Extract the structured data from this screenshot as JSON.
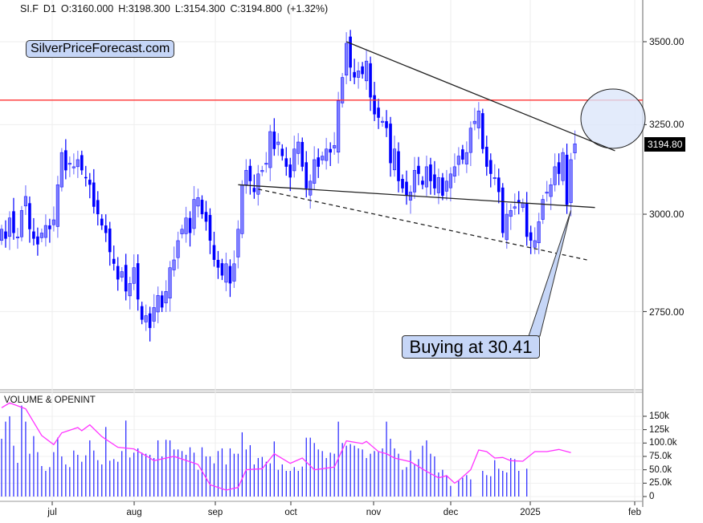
{
  "header": {
    "symbol": "SI.F",
    "timeframe": "D1",
    "open": "O:3160.000",
    "high": "H:3198.300",
    "low": "L:3154.300",
    "close": "C:3194.800",
    "change": "(+1.32%)"
  },
  "brand": "SilverPriceForecast.com",
  "callout": "Buying at 30.41",
  "colors": {
    "candle": "#0000ff",
    "candle_up_fill": "#7f7fff",
    "resistance": "#ff3333",
    "openint": "#ff33ff",
    "volume": "#2020ff",
    "callout_fill": "#c6d6f7"
  },
  "chart_data": [
    {
      "type": "candlestick",
      "title": "",
      "scale": "log",
      "ylim": [
        2620,
        3620
      ],
      "y_ticks": [
        "3500.00",
        "3250.00",
        "3000.00",
        "2750.00"
      ],
      "y_tick_values": [
        3500,
        3250,
        3000,
        2750
      ],
      "last_price": "3194.80",
      "x_ticks": [
        "jul",
        "aug",
        "sep",
        "oct",
        "nov",
        "dec",
        "2025",
        "feb"
      ],
      "x_tick_bars": [
        13,
        33,
        53,
        72,
        93,
        112,
        132,
        158
      ],
      "grid": true,
      "closes": [
        2960,
        2935,
        2990,
        2950,
        2940,
        3010,
        3048,
        2960,
        2935,
        2920,
        2950,
        2970,
        2960,
        2985,
        3080,
        3170,
        3120,
        3140,
        3130,
        3150,
        3120,
        3100,
        3080,
        3020,
        3000,
        2970,
        2950,
        2900,
        2870,
        2830,
        2850,
        2800,
        2820,
        2860,
        2780,
        2730,
        2740,
        2710,
        2760,
        2790,
        2760,
        2800,
        2860,
        2880,
        2930,
        2960,
        2990,
        2950,
        3040,
        3045,
        3000,
        2980,
        2930,
        2880,
        2860,
        2840,
        2870,
        2820,
        2870,
        2960,
        3080,
        3120,
        3090,
        3060,
        3110,
        3120,
        3140,
        3230,
        3180,
        3200,
        3160,
        3130,
        3100,
        3180,
        3200,
        3130,
        3070,
        3090,
        3150,
        3130,
        3160,
        3180,
        3170,
        3190,
        3320,
        3390,
        3495,
        3420,
        3390,
        3410,
        3400,
        3440,
        3330,
        3280,
        3270,
        3260,
        3240,
        3140,
        3180,
        3090,
        3070,
        3050,
        3060,
        3120,
        3110,
        3080,
        3130,
        3090,
        3070,
        3100,
        3050,
        3090,
        3110,
        3130,
        3160,
        3150,
        3170,
        3240,
        3260,
        3290,
        3180,
        3130,
        3110,
        3100,
        3060,
        2950,
        3000,
        3010,
        3020,
        3030,
        3030,
        2940,
        2930,
        2930,
        2980,
        3040,
        3060,
        3080,
        3130,
        3110,
        3170,
        3025,
        3150,
        3194.8
      ],
      "annotations": {
        "resistance_level": 3322,
        "trendlines": [
          {
            "style": "solid",
            "from": {
              "bar": 86,
              "price": 3500
            },
            "to": {
              "bar": 153,
              "price": 3175
            }
          },
          {
            "style": "solid",
            "from": {
              "bar": 59,
              "price": 3080
            },
            "to": {
              "bar": 148,
              "price": 3018
            }
          },
          {
            "style": "dashed",
            "from": {
              "bar": 64,
              "price": 3068
            },
            "to": {
              "bar": 146,
              "price": 2880
            }
          }
        ],
        "target_zone": {
          "bar": 153,
          "price": 3270
        },
        "callout_point": {
          "bar": 142,
          "price": 3010
        }
      }
    },
    {
      "type": "bar+line",
      "title": "VOLUME & OPENINT",
      "y_ticks": [
        "150k",
        "125k",
        "100.0k",
        "75.0k",
        "50.0k",
        "25.0k",
        "0"
      ],
      "y_tick_values": [
        150,
        125,
        100,
        75,
        50,
        25,
        0
      ],
      "unit": "k",
      "volume": [
        108,
        140,
        150,
        95,
        63,
        170,
        140,
        80,
        113,
        83,
        57,
        48,
        55,
        83,
        110,
        75,
        60,
        55,
        86,
        78,
        65,
        77,
        105,
        86,
        68,
        60,
        130,
        67,
        70,
        65,
        85,
        142,
        73,
        82,
        90,
        82,
        80,
        78,
        72,
        105,
        75,
        106,
        105,
        88,
        88,
        85,
        78,
        92,
        82,
        50,
        92,
        75,
        75,
        62,
        85,
        90,
        60,
        90,
        80,
        80,
        120,
        88,
        96,
        60,
        72,
        74,
        65,
        62,
        103,
        50,
        60,
        48,
        48,
        55,
        48,
        56,
        110,
        110,
        100,
        88,
        85,
        72,
        82,
        80,
        140,
        100,
        95,
        98,
        95,
        90,
        88,
        72,
        80,
        85,
        84,
        90,
        140,
        108,
        90,
        80,
        50,
        55,
        86,
        60,
        70,
        95,
        105,
        80,
        75,
        45,
        50,
        40,
        20,
        0,
        30,
        35,
        40,
        32,
        0,
        0,
        48,
        40,
        38,
        68,
        52,
        48,
        45,
        72,
        70,
        48,
        0,
        52,
        0,
        0,
        0,
        0,
        0,
        0,
        0,
        0,
        0,
        0,
        0,
        0
      ],
      "openint": [
        [
          0,
          166
        ],
        [
          2,
          175
        ],
        [
          6,
          164
        ],
        [
          10,
          114
        ],
        [
          13,
          97
        ],
        [
          15,
          119
        ],
        [
          19,
          129
        ],
        [
          20,
          123
        ],
        [
          22,
          134
        ],
        [
          25,
          112
        ],
        [
          29,
          92
        ],
        [
          33,
          89
        ],
        [
          37,
          72
        ],
        [
          38,
          67
        ],
        [
          43,
          75
        ],
        [
          47,
          65
        ],
        [
          49,
          60
        ],
        [
          52,
          22
        ],
        [
          56,
          12
        ],
        [
          59,
          17
        ],
        [
          61,
          50
        ],
        [
          65,
          52
        ],
        [
          68,
          80
        ],
        [
          72,
          62
        ],
        [
          75,
          72
        ],
        [
          78,
          50
        ],
        [
          83,
          55
        ],
        [
          86,
          104
        ],
        [
          90,
          99
        ],
        [
          91,
          103
        ],
        [
          94,
          84
        ],
        [
          96,
          80
        ],
        [
          98,
          72
        ],
        [
          102,
          65
        ],
        [
          106,
          47
        ],
        [
          109,
          35
        ],
        [
          111,
          39
        ],
        [
          113,
          25
        ],
        [
          114,
          30
        ],
        [
          117,
          50
        ],
        [
          119,
          87
        ],
        [
          121,
          84
        ],
        [
          123,
          72
        ],
        [
          125,
          73
        ],
        [
          127,
          67
        ],
        [
          130,
          66
        ],
        [
          133,
          84
        ],
        [
          136,
          84
        ],
        [
          139,
          88
        ],
        [
          142,
          82
        ]
      ]
    }
  ]
}
